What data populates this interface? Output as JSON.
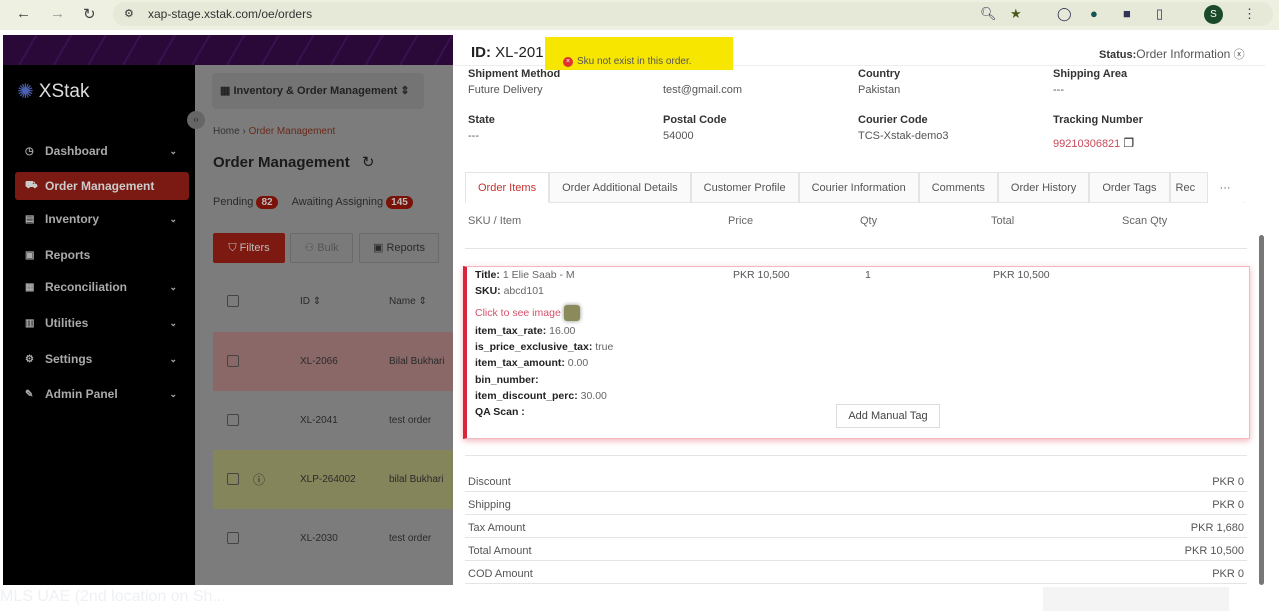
{
  "browser": {
    "url": "xap-stage.xstak.com/oe/orders",
    "profile_initial": "S"
  },
  "sidebar": {
    "logo": "XStak",
    "items": [
      {
        "label": "Dashboard",
        "icon": "dashboard-icon",
        "chevron": true
      },
      {
        "label": "Order Management",
        "icon": "cart-icon",
        "active": true
      },
      {
        "label": "Inventory",
        "icon": "inventory-icon",
        "chevron": true
      },
      {
        "label": "Reports",
        "icon": "report-icon"
      },
      {
        "label": "Reconciliation",
        "icon": "reconciliation-icon",
        "chevron": true
      },
      {
        "label": "Utilities",
        "icon": "utilities-icon",
        "chevron": true
      },
      {
        "label": "Settings",
        "icon": "gear-icon",
        "chevron": true
      },
      {
        "label": "Admin Panel",
        "icon": "wrench-icon",
        "chevron": true
      }
    ]
  },
  "content": {
    "app_selector": "Inventory & Order Management",
    "breadcrumb": {
      "home": "Home",
      "current": "Order Management"
    },
    "title": "Order Management",
    "status_tabs": [
      {
        "label": "Pending",
        "count": "82"
      },
      {
        "label": "Awaiting Assigning",
        "count": "145"
      }
    ],
    "buttons": {
      "filters": "Filters",
      "bulk": "Bulk",
      "reports": "Reports"
    },
    "columns": {
      "id": "ID",
      "name": "Name"
    },
    "rows": [
      {
        "id": "XL-2066",
        "name": "Bilal Bukhari",
        "color": "#8a6868"
      },
      {
        "id": "XL-2041",
        "name": "test order",
        "color": "#7c7c7c"
      },
      {
        "id": "XLP-264002",
        "name": "bilal Bukhari",
        "color": "#85855c",
        "info": true
      },
      {
        "id": "XL-2030",
        "name": "test order",
        "color": "#7c7c7c"
      }
    ]
  },
  "drawer": {
    "id_label": "ID:",
    "id_value": "XL-201",
    "status_label": "Status:",
    "status_value": "Order Information",
    "toast": "Sku not exist in this order.",
    "fields": [
      {
        "label": "Shipment Method",
        "value": "Future Delivery"
      },
      {
        "label": "",
        "value": "test@gmail.com"
      },
      {
        "label": "Country",
        "value": "Pakistan"
      },
      {
        "label": "Shipping Area",
        "value": "---"
      },
      {
        "label": "State",
        "value": "---"
      },
      {
        "label": "Postal Code",
        "value": "54000"
      },
      {
        "label": "Courier Code",
        "value": "TCS-Xstak-demo3"
      },
      {
        "label": "Tracking Number",
        "value": "99210306821"
      }
    ],
    "tabs": [
      "Order Items",
      "Order Additional Details",
      "Customer Profile",
      "Courier Information",
      "Comments",
      "Order History",
      "Order Tags",
      "Rec"
    ],
    "table_headers": [
      "SKU / Item",
      "Price",
      "Qty",
      "Total",
      "Scan Qty"
    ],
    "item": {
      "title_label": "Title:",
      "title": "1 Elie Saab - M",
      "price": "PKR 10,500",
      "qty": "1",
      "total": "PKR 10,500",
      "sku_label": "SKU:",
      "sku": "abcd101",
      "image_link": "Click to see image",
      "attrs": [
        {
          "k": "item_tax_rate:",
          "v": "16.00"
        },
        {
          "k": "is_price_exclusive_tax:",
          "v": "true"
        },
        {
          "k": "item_tax_amount:",
          "v": "0.00"
        },
        {
          "k": "bin_number:",
          "v": ""
        },
        {
          "k": "item_discount_perc:",
          "v": "30.00"
        },
        {
          "k": "QA Scan :",
          "v": ""
        }
      ],
      "add_tag": "Add Manual Tag"
    },
    "summary": [
      {
        "label": "Discount",
        "value": "PKR 0"
      },
      {
        "label": "Shipping",
        "value": "PKR 0"
      },
      {
        "label": "Tax Amount",
        "value": "PKR 1,680"
      },
      {
        "label": "Total Amount",
        "value": "PKR 10,500"
      },
      {
        "label": "COD Amount",
        "value": "PKR 0"
      }
    ]
  },
  "bottom_text": "MLS UAE (2nd location on Sh..."
}
